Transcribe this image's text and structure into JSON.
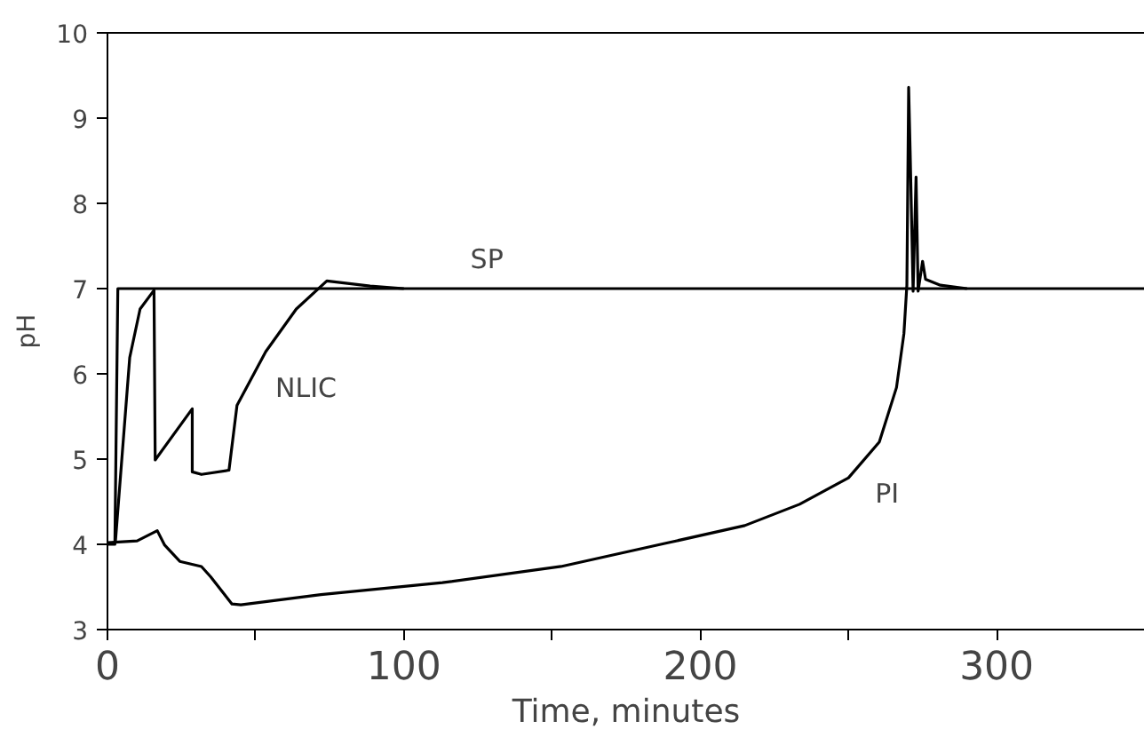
{
  "chart_data": {
    "type": "line",
    "xlabel": "Time, minutes",
    "ylabel": "pH",
    "xlim": [
      0,
      350
    ],
    "ylim": [
      3,
      10
    ],
    "xticks": [
      0,
      {
        "value": 50,
        "label": null
      },
      100,
      {
        "value": 150,
        "label": null
      },
      200,
      {
        "value": 250,
        "label": null
      },
      300
    ],
    "yticks": [
      3,
      4,
      5,
      6,
      7,
      8,
      9,
      10
    ],
    "grid": false,
    "marker": "none",
    "line_style": "solid",
    "series": [
      {
        "name": "SP",
        "color": "#000000",
        "x": [
          0,
          2.5,
          3.5,
          350
        ],
        "values": [
          4,
          4,
          7,
          7
        ]
      },
      {
        "name": "NLIC",
        "color": "#000000",
        "x": [
          2.7,
          7.5,
          11,
          15.7,
          16.1,
          28.6,
          28.6,
          31.7,
          41,
          43.7,
          53.4,
          63.7,
          74,
          88.6,
          100
        ],
        "values": [
          4.04,
          6.19,
          6.76,
          6.98,
          4.99,
          5.59,
          4.85,
          4.82,
          4.87,
          5.63,
          6.26,
          6.76,
          7.09,
          7.03,
          7.0
        ]
      },
      {
        "name": "PI",
        "color": "#000000",
        "x": [
          0,
          10,
          16.8,
          19.3,
          24.4,
          31.7,
          34.8,
          42,
          45,
          72,
          113,
          153,
          188,
          215,
          233.5,
          250,
          260.4,
          266.2,
          268.7,
          269.7,
          270.3,
          270.8,
          271.8,
          272.8,
          273.5,
          275,
          276,
          281,
          290
        ],
        "values": [
          4.02,
          4.04,
          4.16,
          3.99,
          3.8,
          3.74,
          3.62,
          3.3,
          3.29,
          3.41,
          3.55,
          3.74,
          4.01,
          4.22,
          4.47,
          4.78,
          5.2,
          5.84,
          6.47,
          7.04,
          9.36,
          8.62,
          6.97,
          8.31,
          6.97,
          7.32,
          7.11,
          7.04,
          7.0
        ]
      }
    ]
  }
}
